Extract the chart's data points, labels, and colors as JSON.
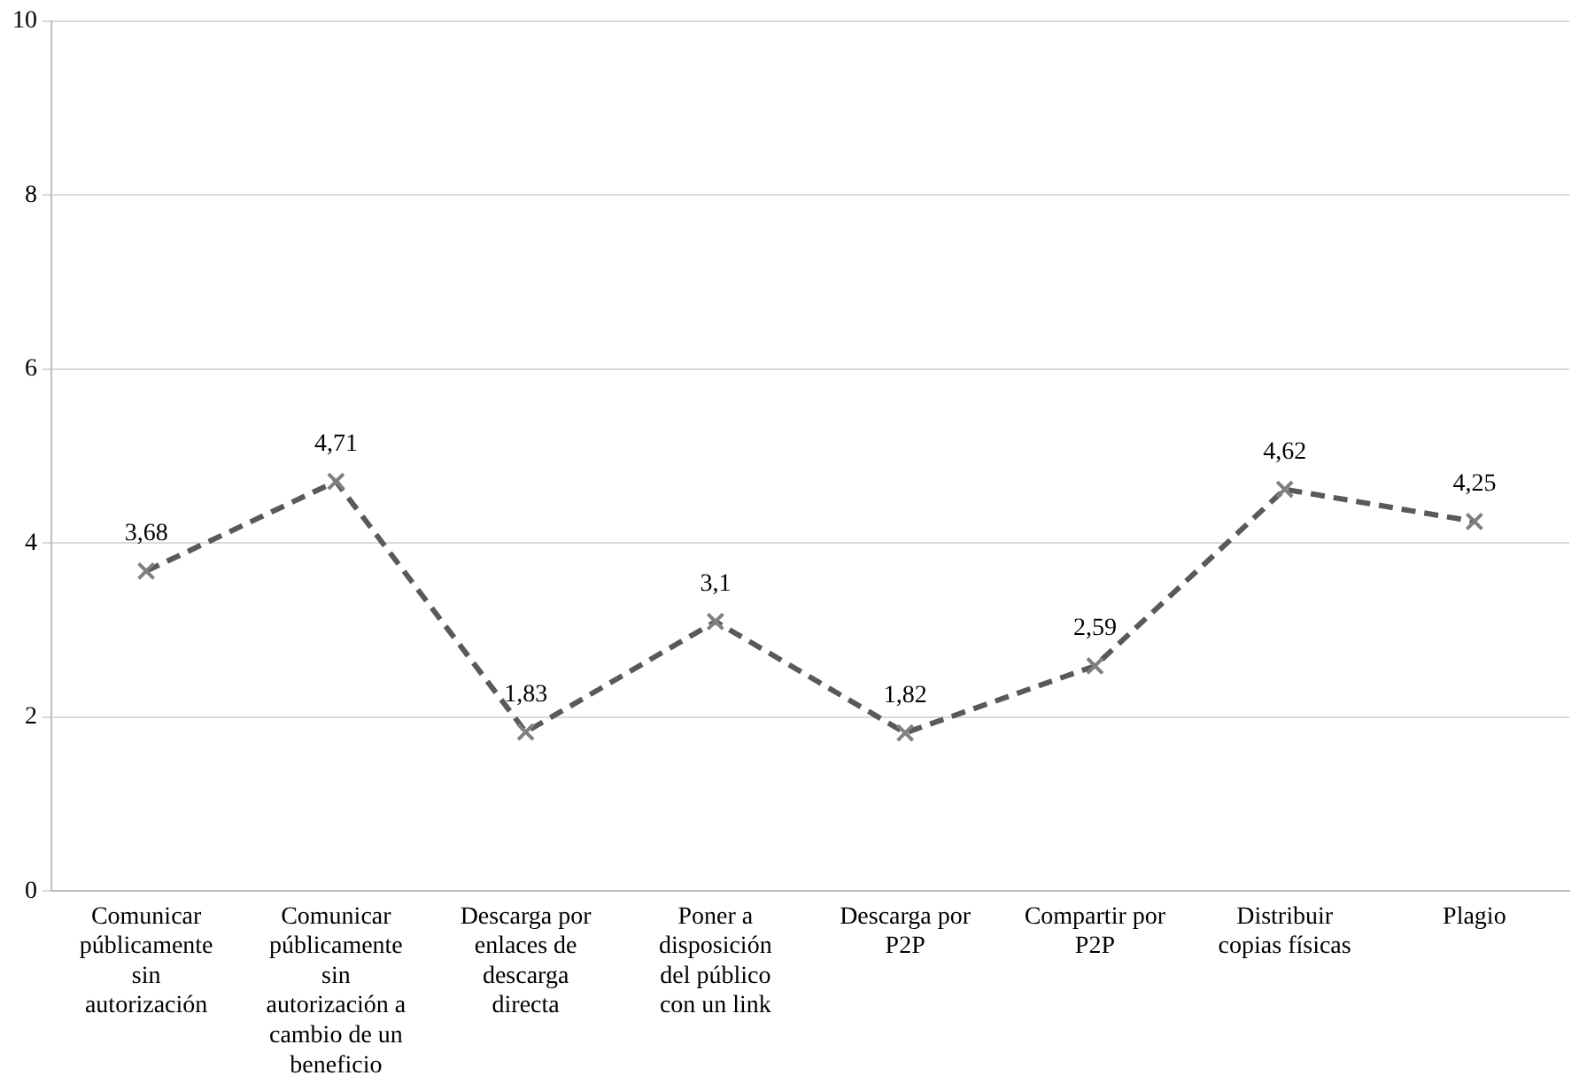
{
  "chart_data": {
    "type": "line",
    "categories": [
      "Comunicar públicamente sin autorización",
      "Comunicar públicamente sin autorización a cambio de un beneficio",
      "Descarga por enlaces de descarga directa",
      "Poner a disposición del público con un link",
      "Descarga por P2P",
      "Compartir por P2P",
      "Distribuir copias físicas",
      "Plagio"
    ],
    "series": [
      {
        "color": "#595959",
        "values": [
          3.68,
          4.71,
          1.83,
          3.1,
          1.82,
          2.59,
          4.62,
          4.25
        ]
      }
    ],
    "ylim": [
      0,
      10
    ],
    "yticks": [
      0,
      2,
      4,
      6,
      8,
      10
    ],
    "grid": "y",
    "legend": false,
    "marker": "cross",
    "line_style": "dashed",
    "value_labels": [
      "3,68",
      "4,71",
      "1,83",
      "3,1",
      "1,82",
      "2,59",
      "4,62",
      "4,25"
    ]
  }
}
